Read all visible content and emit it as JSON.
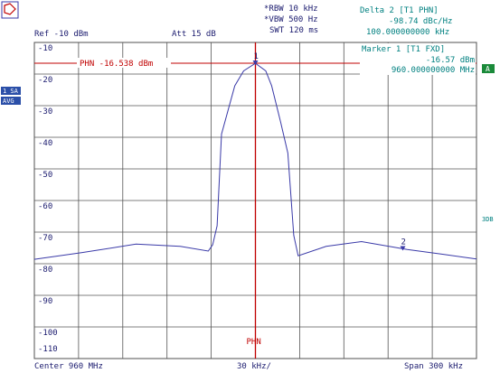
{
  "chart_data": {
    "type": "line",
    "header": {
      "rbw": "*RBW 10 kHz",
      "vbw": "*VBW 500 Hz",
      "swt": "SWT 120 ms",
      "ref": "Ref -10 dBm",
      "att": "Att 15 dB",
      "delta_title": "Delta 2 [T1 PHN]",
      "delta_value": "-98.74 dBc/Hz",
      "delta_freq": "100.000000000 kHz",
      "marker_title": "Marker 1 [T1 FXD]",
      "marker_value": "-16.57 dBm",
      "marker_freq": "960.000000000 MHz"
    },
    "footer": {
      "center": "Center 960 MHz",
      "div": "30 kHz/",
      "span": "Span 300 kHz"
    },
    "side": {
      "trace": "1 SA",
      "avg": "AVG",
      "a": "A",
      "db": "3DB"
    },
    "phn_label": "PHN -16.538 dBm",
    "phn_bottom": "PHN",
    "markers": [
      {
        "label": "1",
        "x": 960.0,
        "y": -16.57
      },
      {
        "label": "2",
        "x": 960.1,
        "y": -75.3
      }
    ],
    "x": [
      959.85,
      959.882,
      959.919,
      959.949,
      959.968,
      959.971,
      959.974,
      959.977,
      959.986,
      959.992,
      960.0,
      960.007,
      960.011,
      960.017,
      960.022,
      960.026,
      960.029,
      960.048,
      960.072,
      960.103,
      960.127,
      960.15
    ],
    "series": [
      {
        "name": "Trace 1",
        "color": "#3a3aa8",
        "values": [
          -78.6,
          -76.5,
          -73.8,
          -74.5,
          -76,
          -74,
          -68,
          -39,
          -23.7,
          -19,
          -16.6,
          -19,
          -23.7,
          -35,
          -45,
          -71,
          -77.5,
          -74.5,
          -73,
          -75.5,
          -77,
          -78.5
        ]
      }
    ],
    "xlim": [
      959.85,
      960.15
    ],
    "xticks": [
      959.85,
      959.88,
      959.91,
      959.94,
      959.97,
      960.0,
      960.03,
      960.06,
      960.09,
      960.12,
      960.15
    ],
    "ylim": [
      -110,
      -10
    ],
    "yticks": [
      -10,
      -20,
      -30,
      -40,
      -50,
      -60,
      -70,
      -80,
      -90,
      -100,
      -110
    ],
    "grid": true
  }
}
